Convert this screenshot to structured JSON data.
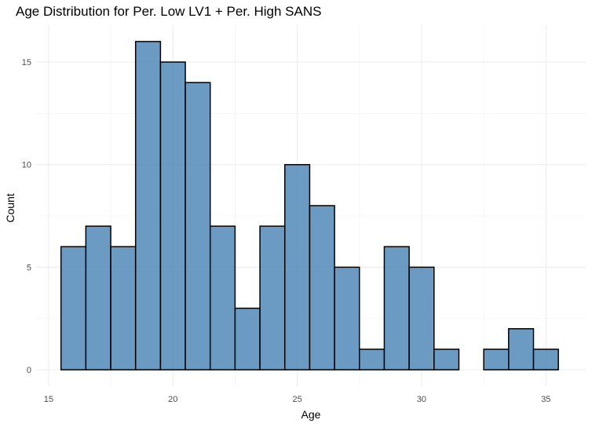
{
  "chart_data": {
    "type": "bar",
    "title": "Age Distribution for Per. Low LV1 + Per. High SANS",
    "xlabel": "Age",
    "ylabel": "Count",
    "bin_width": 1,
    "bins": [
      {
        "x": 16,
        "count": 6
      },
      {
        "x": 17,
        "count": 7
      },
      {
        "x": 18,
        "count": 6
      },
      {
        "x": 19,
        "count": 16
      },
      {
        "x": 20,
        "count": 15
      },
      {
        "x": 21,
        "count": 14
      },
      {
        "x": 22,
        "count": 7
      },
      {
        "x": 23,
        "count": 3
      },
      {
        "x": 24,
        "count": 7
      },
      {
        "x": 25,
        "count": 10
      },
      {
        "x": 26,
        "count": 8
      },
      {
        "x": 27,
        "count": 5
      },
      {
        "x": 28,
        "count": 1
      },
      {
        "x": 29,
        "count": 6
      },
      {
        "x": 30,
        "count": 5
      },
      {
        "x": 31,
        "count": 1
      },
      {
        "x": 32,
        "count": 0
      },
      {
        "x": 33,
        "count": 1
      },
      {
        "x": 34,
        "count": 2
      },
      {
        "x": 35,
        "count": 1
      }
    ],
    "xlim": [
      14.5,
      36.6
    ],
    "ylim": [
      -0.8,
      16.8
    ],
    "x_ticks": [
      15,
      20,
      25,
      30,
      35
    ],
    "y_ticks": [
      0,
      5,
      10,
      15
    ],
    "x_tick_labels": [
      "15",
      "20",
      "25",
      "30",
      "35"
    ],
    "y_tick_labels": [
      "0",
      "5",
      "10",
      "15"
    ],
    "grid": true,
    "legend": "none",
    "colors": {
      "fill": "#4682b4",
      "fill_opacity": 0.8,
      "outline": "#000000"
    }
  }
}
